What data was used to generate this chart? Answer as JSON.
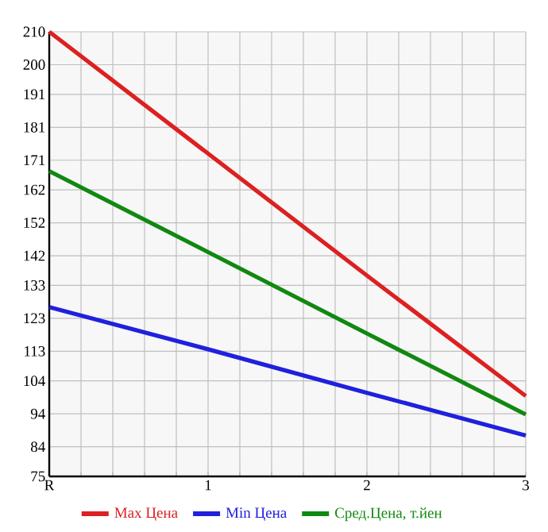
{
  "chart_data": {
    "type": "line",
    "categories": [
      "R",
      "1",
      "2",
      "3"
    ],
    "series": [
      {
        "name": "Max Цена",
        "color": "#dd2020",
        "values": [
          210,
          173,
          136,
          99.4
        ]
      },
      {
        "name": "Min Цена",
        "color": "#2020dd",
        "values": [
          126.4,
          113.6,
          100.4,
          87.4
        ]
      },
      {
        "name": "Сред.Цена, т.йен",
        "color": "#118811",
        "values": [
          167.7,
          143.1,
          118.4,
          93.8
        ]
      }
    ],
    "ylim": [
      75,
      210
    ],
    "yticks": [
      75,
      84,
      94,
      104,
      113,
      123,
      133,
      142,
      152,
      162,
      171,
      181,
      191,
      200,
      210
    ],
    "grid": true,
    "legend": "bottom"
  }
}
